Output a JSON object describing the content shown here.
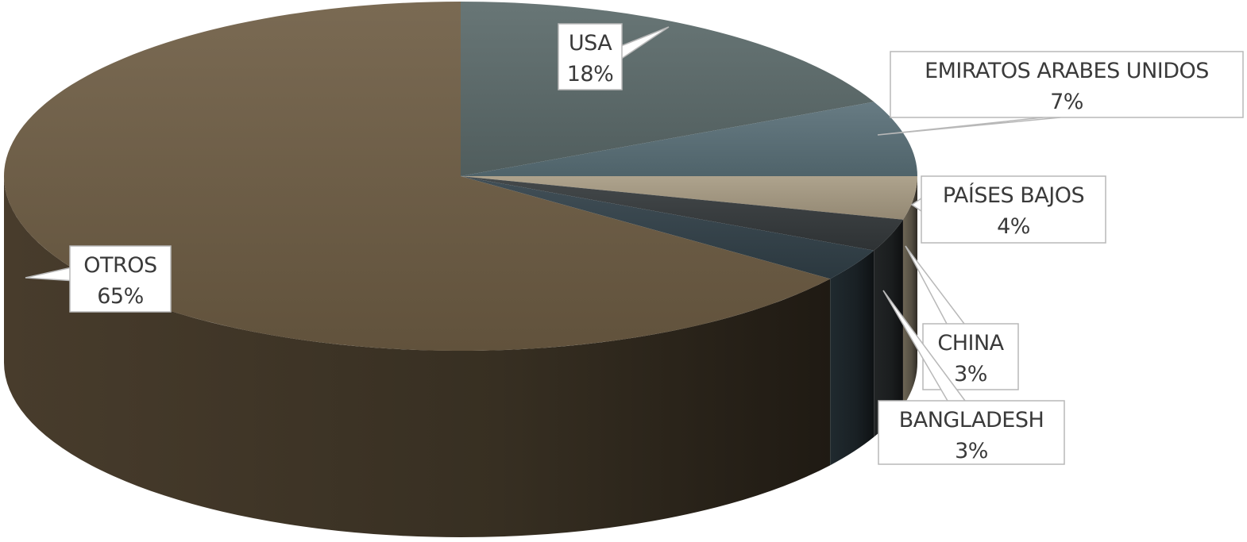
{
  "chart_data": {
    "type": "pie",
    "style": "3d",
    "title": "",
    "slices": [
      {
        "label": "USA",
        "value": 18,
        "value_label": "18%",
        "color": "#5b6a6a"
      },
      {
        "label": "EMIRATOS ARABES UNIDOS",
        "value": 7,
        "value_label": "7%",
        "color": "#5a7078"
      },
      {
        "label": "PAÍSES BAJOS",
        "value": 4,
        "value_label": "4%",
        "color": "#a79b83"
      },
      {
        "label": "CHINA",
        "value": 3,
        "value_label": "3%",
        "color": "#34393b"
      },
      {
        "label": "BANGLADESH",
        "value": 3,
        "value_label": "3%",
        "color": "#314048"
      },
      {
        "label": "OTROS",
        "value": 65,
        "value_label": "65%",
        "color": "#6e5d44"
      }
    ]
  }
}
